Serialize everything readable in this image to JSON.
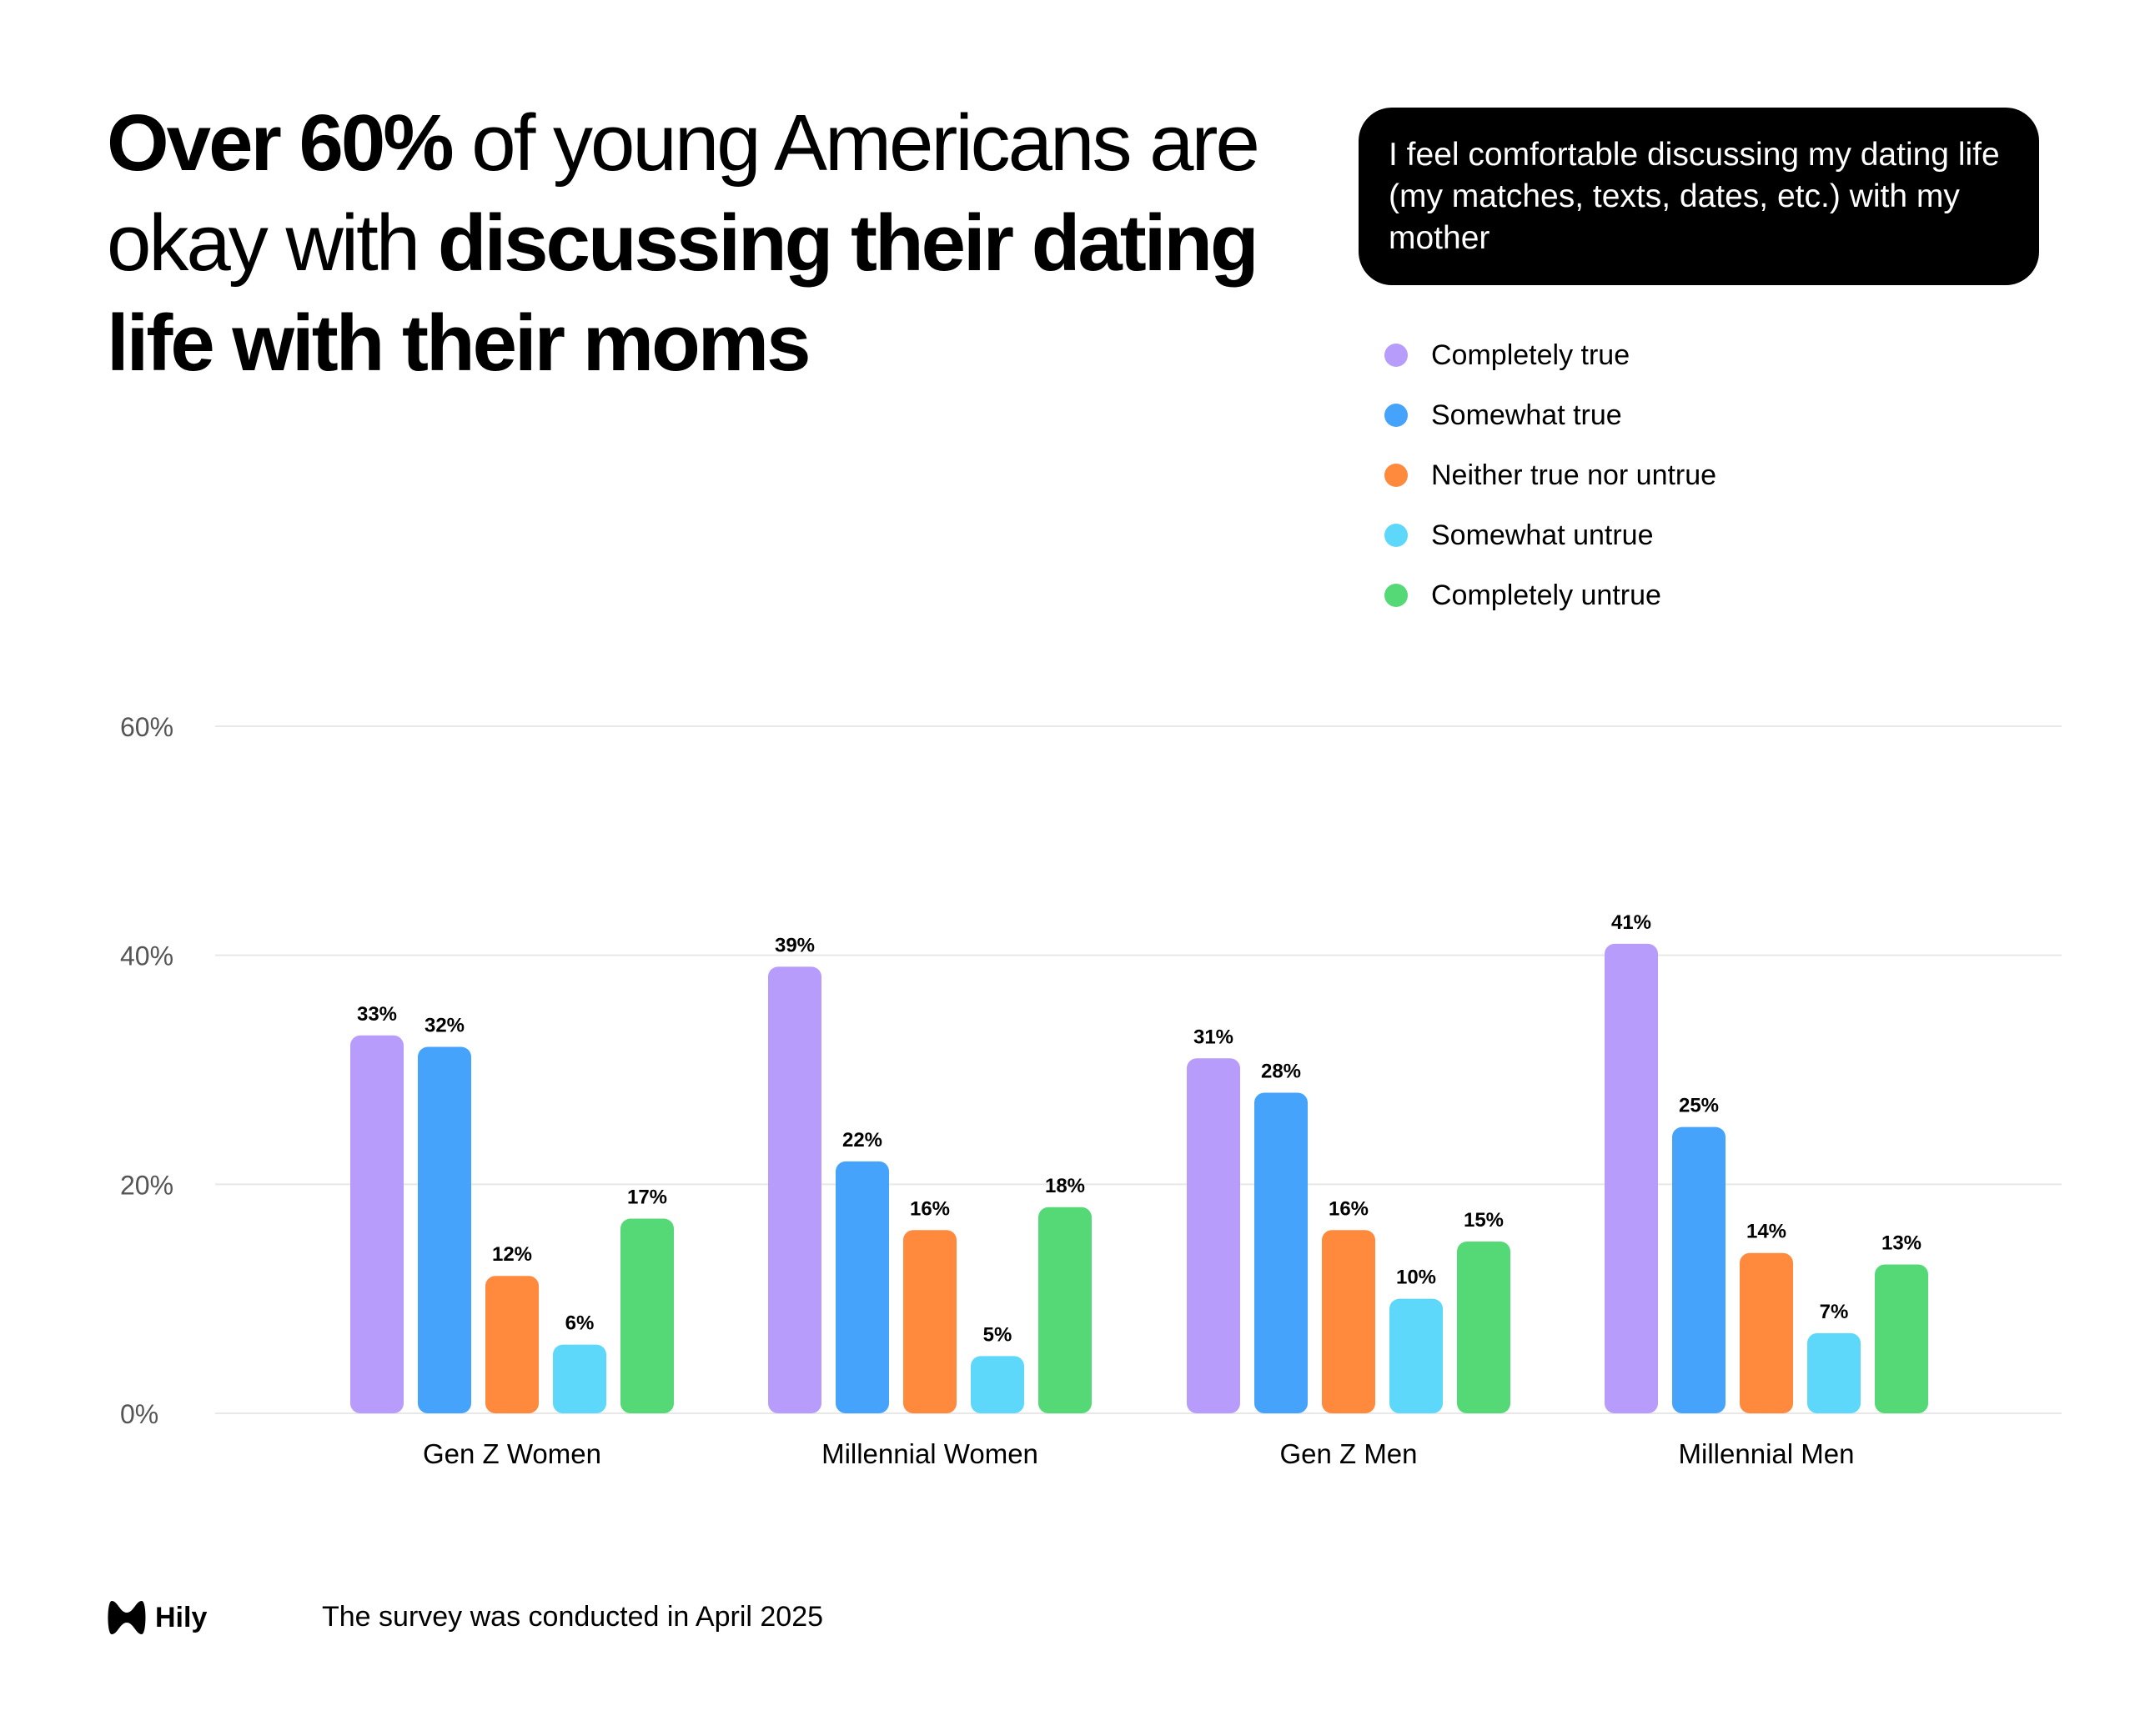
{
  "headline": {
    "part1_bold": "Over 60%",
    "part2": " of young Americans are okay with ",
    "part3_bold": "discussing their dating life with their moms"
  },
  "question": "I feel comfortable discussing my dating life (my matches, texts, dates, etc.) with my mother",
  "legend": [
    {
      "label": "Completely true",
      "color": "#b79cfb"
    },
    {
      "label": "Somewhat true",
      "color": "#45a3fb"
    },
    {
      "label": "Neither true nor untrue",
      "color": "#ff8a3d"
    },
    {
      "label": "Somewhat untrue",
      "color": "#5dd8fa"
    },
    {
      "label": "Completely untrue",
      "color": "#55d977"
    }
  ],
  "chart_data": {
    "type": "bar",
    "title": "I feel comfortable discussing my dating life (my matches, texts, dates, etc.) with my mother",
    "categories": [
      "Gen Z Women",
      "Millennial Women",
      "Gen Z Men",
      "Millennial Men"
    ],
    "series": [
      {
        "name": "Completely true",
        "color": "#b79cfb",
        "values": [
          33,
          39,
          31,
          41
        ]
      },
      {
        "name": "Somewhat true",
        "color": "#45a3fb",
        "values": [
          32,
          22,
          28,
          25
        ]
      },
      {
        "name": "Neither true nor untrue",
        "color": "#ff8a3d",
        "values": [
          12,
          16,
          16,
          14
        ]
      },
      {
        "name": "Somewhat untrue",
        "color": "#5dd8fa",
        "values": [
          6,
          5,
          10,
          7
        ]
      },
      {
        "name": "Completely untrue",
        "color": "#55d977",
        "values": [
          17,
          18,
          15,
          13
        ]
      }
    ],
    "ylim": [
      0,
      60
    ],
    "yticks": [
      0,
      20,
      40,
      60
    ],
    "ytick_suffix": "%",
    "value_suffix": "%",
    "grid": true,
    "xlabel": "",
    "ylabel": ""
  },
  "footer": {
    "brand": "Hily",
    "note": "The survey was conducted in April 2025"
  }
}
